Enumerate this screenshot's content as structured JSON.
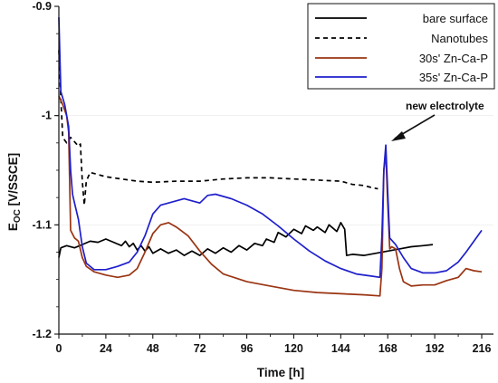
{
  "chart_data": {
    "type": "line",
    "xlabel": "Time [h]",
    "ylabel_main": "E",
    "ylabel_sub": "OC",
    "ylabel_unit": " [V/SSCE]",
    "xlim": [
      0,
      222
    ],
    "ylim": [
      -1.2,
      -0.9
    ],
    "xticks": [
      0,
      24,
      48,
      72,
      96,
      120,
      144,
      168,
      192,
      216
    ],
    "yticks": [
      -0.9,
      -1.0,
      -1.1,
      -1.2
    ],
    "ytick_labels": [
      "-0.9",
      "-1",
      "-1.1",
      "-1.2"
    ],
    "annotation": {
      "text": "new electrolyte",
      "x": 167,
      "y": -1.027
    },
    "legend_position": "top-right",
    "series": [
      {
        "name": "bare surface",
        "color": "#000000",
        "dash": "solid",
        "points": [
          [
            0,
            -1.13
          ],
          [
            1,
            -1.121
          ],
          [
            4,
            -1.119
          ],
          [
            8,
            -1.121
          ],
          [
            12,
            -1.118
          ],
          [
            16,
            -1.115
          ],
          [
            20,
            -1.116
          ],
          [
            24,
            -1.113
          ],
          [
            28,
            -1.116
          ],
          [
            32,
            -1.119
          ],
          [
            34,
            -1.115
          ],
          [
            36,
            -1.12
          ],
          [
            38,
            -1.117
          ],
          [
            40,
            -1.123
          ],
          [
            42,
            -1.119
          ],
          [
            44,
            -1.124
          ],
          [
            46,
            -1.12
          ],
          [
            48,
            -1.126
          ],
          [
            52,
            -1.122
          ],
          [
            56,
            -1.126
          ],
          [
            60,
            -1.123
          ],
          [
            64,
            -1.128
          ],
          [
            68,
            -1.124
          ],
          [
            72,
            -1.128
          ],
          [
            76,
            -1.122
          ],
          [
            80,
            -1.126
          ],
          [
            84,
            -1.121
          ],
          [
            88,
            -1.125
          ],
          [
            92,
            -1.119
          ],
          [
            96,
            -1.123
          ],
          [
            100,
            -1.117
          ],
          [
            104,
            -1.119
          ],
          [
            106,
            -1.113
          ],
          [
            110,
            -1.116
          ],
          [
            112,
            -1.107
          ],
          [
            116,
            -1.111
          ],
          [
            120,
            -1.104
          ],
          [
            124,
            -1.108
          ],
          [
            126,
            -1.101
          ],
          [
            130,
            -1.105
          ],
          [
            132,
            -1.102
          ],
          [
            136,
            -1.107
          ],
          [
            138,
            -1.1
          ],
          [
            142,
            -1.106
          ],
          [
            144,
            -1.098
          ],
          [
            146,
            -1.104
          ],
          [
            147,
            -1.128
          ],
          [
            150,
            -1.127
          ],
          [
            156,
            -1.128
          ],
          [
            162,
            -1.126
          ],
          [
            168,
            -1.124
          ],
          [
            174,
            -1.122
          ],
          [
            180,
            -1.12
          ],
          [
            186,
            -1.119
          ],
          [
            191,
            -1.118
          ]
        ]
      },
      {
        "name": "Nanotubes",
        "color": "#000000",
        "dash": "dashed",
        "points": [
          [
            0,
            -0.94
          ],
          [
            1,
            -0.985
          ],
          [
            2,
            -1.02
          ],
          [
            4,
            -1.025
          ],
          [
            6,
            -1.02
          ],
          [
            8,
            -1.024
          ],
          [
            10,
            -1.028
          ],
          [
            11,
            -1.026
          ],
          [
            12,
            -1.06
          ],
          [
            13,
            -1.082
          ],
          [
            14,
            -1.06
          ],
          [
            16,
            -1.052
          ],
          [
            20,
            -1.054
          ],
          [
            24,
            -1.056
          ],
          [
            32,
            -1.058
          ],
          [
            40,
            -1.06
          ],
          [
            48,
            -1.061
          ],
          [
            60,
            -1.06
          ],
          [
            72,
            -1.06
          ],
          [
            84,
            -1.058
          ],
          [
            96,
            -1.057
          ],
          [
            108,
            -1.057
          ],
          [
            120,
            -1.058
          ],
          [
            132,
            -1.059
          ],
          [
            144,
            -1.06
          ],
          [
            150,
            -1.063
          ],
          [
            156,
            -1.064
          ],
          [
            160,
            -1.066
          ],
          [
            163,
            -1.067
          ]
        ]
      },
      {
        "name": "30s' Zn-Ca-P",
        "color": "#9a3412",
        "dash": "solid",
        "points": [
          [
            0,
            -0.982
          ],
          [
            2,
            -0.99
          ],
          [
            4,
            -1.0
          ],
          [
            5,
            -1.015
          ],
          [
            6,
            -1.105
          ],
          [
            8,
            -1.112
          ],
          [
            10,
            -1.115
          ],
          [
            12,
            -1.13
          ],
          [
            14,
            -1.138
          ],
          [
            18,
            -1.143
          ],
          [
            24,
            -1.146
          ],
          [
            30,
            -1.148
          ],
          [
            36,
            -1.146
          ],
          [
            40,
            -1.14
          ],
          [
            44,
            -1.125
          ],
          [
            48,
            -1.108
          ],
          [
            52,
            -1.1
          ],
          [
            56,
            -1.098
          ],
          [
            60,
            -1.102
          ],
          [
            66,
            -1.11
          ],
          [
            72,
            -1.124
          ],
          [
            78,
            -1.136
          ],
          [
            84,
            -1.145
          ],
          [
            96,
            -1.152
          ],
          [
            108,
            -1.156
          ],
          [
            120,
            -1.16
          ],
          [
            132,
            -1.162
          ],
          [
            144,
            -1.163
          ],
          [
            156,
            -1.164
          ],
          [
            164,
            -1.165
          ],
          [
            165,
            -1.14
          ],
          [
            166,
            -1.05
          ],
          [
            167,
            -1.035
          ],
          [
            168,
            -1.08
          ],
          [
            169,
            -1.122
          ],
          [
            170,
            -1.12
          ],
          [
            172,
            -1.122
          ],
          [
            174,
            -1.14
          ],
          [
            176,
            -1.152
          ],
          [
            180,
            -1.156
          ],
          [
            186,
            -1.155
          ],
          [
            192,
            -1.155
          ],
          [
            198,
            -1.151
          ],
          [
            204,
            -1.148
          ],
          [
            208,
            -1.14
          ],
          [
            212,
            -1.142
          ],
          [
            216,
            -1.143
          ]
        ]
      },
      {
        "name": "35s' Zn-Ca-P",
        "color": "#1f1fcc",
        "dash": "solid",
        "points": [
          [
            0,
            -0.91
          ],
          [
            1,
            -0.978
          ],
          [
            3,
            -0.99
          ],
          [
            5,
            -1.01
          ],
          [
            6,
            -1.05
          ],
          [
            7,
            -1.072
          ],
          [
            8,
            -1.08
          ],
          [
            10,
            -1.095
          ],
          [
            12,
            -1.12
          ],
          [
            14,
            -1.135
          ],
          [
            18,
            -1.141
          ],
          [
            24,
            -1.141
          ],
          [
            30,
            -1.138
          ],
          [
            36,
            -1.134
          ],
          [
            40,
            -1.125
          ],
          [
            44,
            -1.11
          ],
          [
            48,
            -1.09
          ],
          [
            52,
            -1.082
          ],
          [
            56,
            -1.08
          ],
          [
            60,
            -1.078
          ],
          [
            64,
            -1.076
          ],
          [
            68,
            -1.078
          ],
          [
            72,
            -1.08
          ],
          [
            76,
            -1.073
          ],
          [
            80,
            -1.072
          ],
          [
            88,
            -1.076
          ],
          [
            96,
            -1.082
          ],
          [
            104,
            -1.09
          ],
          [
            112,
            -1.101
          ],
          [
            120,
            -1.113
          ],
          [
            128,
            -1.124
          ],
          [
            136,
            -1.133
          ],
          [
            144,
            -1.14
          ],
          [
            152,
            -1.145
          ],
          [
            160,
            -1.147
          ],
          [
            164,
            -1.148
          ],
          [
            165,
            -1.11
          ],
          [
            166,
            -1.05
          ],
          [
            167,
            -1.027
          ],
          [
            168,
            -1.07
          ],
          [
            169,
            -1.112
          ],
          [
            172,
            -1.118
          ],
          [
            176,
            -1.13
          ],
          [
            180,
            -1.14
          ],
          [
            186,
            -1.144
          ],
          [
            192,
            -1.144
          ],
          [
            198,
            -1.142
          ],
          [
            204,
            -1.134
          ],
          [
            208,
            -1.125
          ],
          [
            212,
            -1.115
          ],
          [
            216,
            -1.105
          ]
        ]
      }
    ]
  }
}
